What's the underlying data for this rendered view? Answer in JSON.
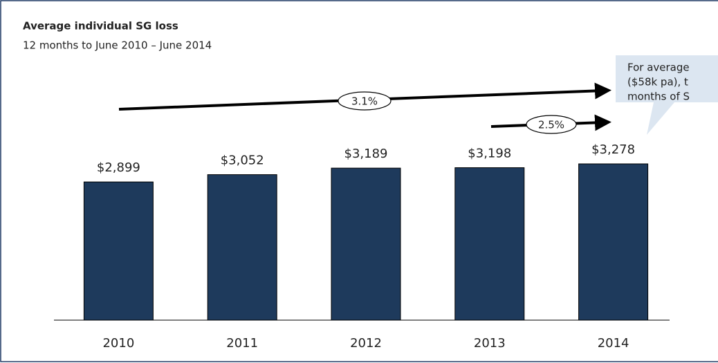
{
  "chart_data": {
    "type": "bar",
    "title": "Average individual  SG loss",
    "subtitle": "12 months to June 2010 – June 2014",
    "categories": [
      "2010",
      "2011",
      "2012",
      "2013",
      "2014"
    ],
    "values": [
      2899,
      3052,
      3189,
      3198,
      3278
    ],
    "value_labels": [
      "$2,899",
      "$3,052",
      "$3,189",
      "$3,198",
      "$3,278"
    ],
    "color": "#1e3a5c",
    "annotations": [
      "3.1%",
      "2.5%"
    ],
    "callout": [
      "For average",
      "($58k pa), t",
      "months of S"
    ]
  }
}
